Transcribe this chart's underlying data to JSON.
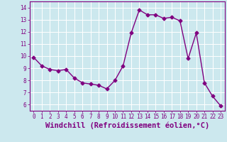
{
  "x": [
    0,
    1,
    2,
    3,
    4,
    5,
    6,
    7,
    8,
    9,
    10,
    11,
    12,
    13,
    14,
    15,
    16,
    17,
    18,
    19,
    20,
    21,
    22,
    23
  ],
  "y": [
    9.9,
    9.2,
    8.9,
    8.8,
    8.9,
    8.2,
    7.8,
    7.7,
    7.6,
    7.3,
    8.0,
    9.2,
    11.9,
    13.8,
    13.4,
    13.4,
    13.1,
    13.2,
    12.9,
    9.8,
    11.9,
    7.8,
    6.7,
    5.9
  ],
  "line_color": "#800080",
  "marker": "D",
  "marker_size": 2.5,
  "bg_color": "#cce8ee",
  "grid_color": "#ffffff",
  "xlabel": "Windchill (Refroidissement éolien,°C)",
  "xlabel_color": "#800080",
  "xlim": [
    -0.5,
    23.5
  ],
  "ylim": [
    5.5,
    14.5
  ],
  "yticks": [
    6,
    7,
    8,
    9,
    10,
    11,
    12,
    13,
    14
  ],
  "xticks": [
    0,
    1,
    2,
    3,
    4,
    5,
    6,
    7,
    8,
    9,
    10,
    11,
    12,
    13,
    14,
    15,
    16,
    17,
    18,
    19,
    20,
    21,
    22,
    23
  ],
  "tick_color": "#800080",
  "tick_label_fontsize": 5.5,
  "xlabel_fontsize": 7.5,
  "line_width": 1.0
}
